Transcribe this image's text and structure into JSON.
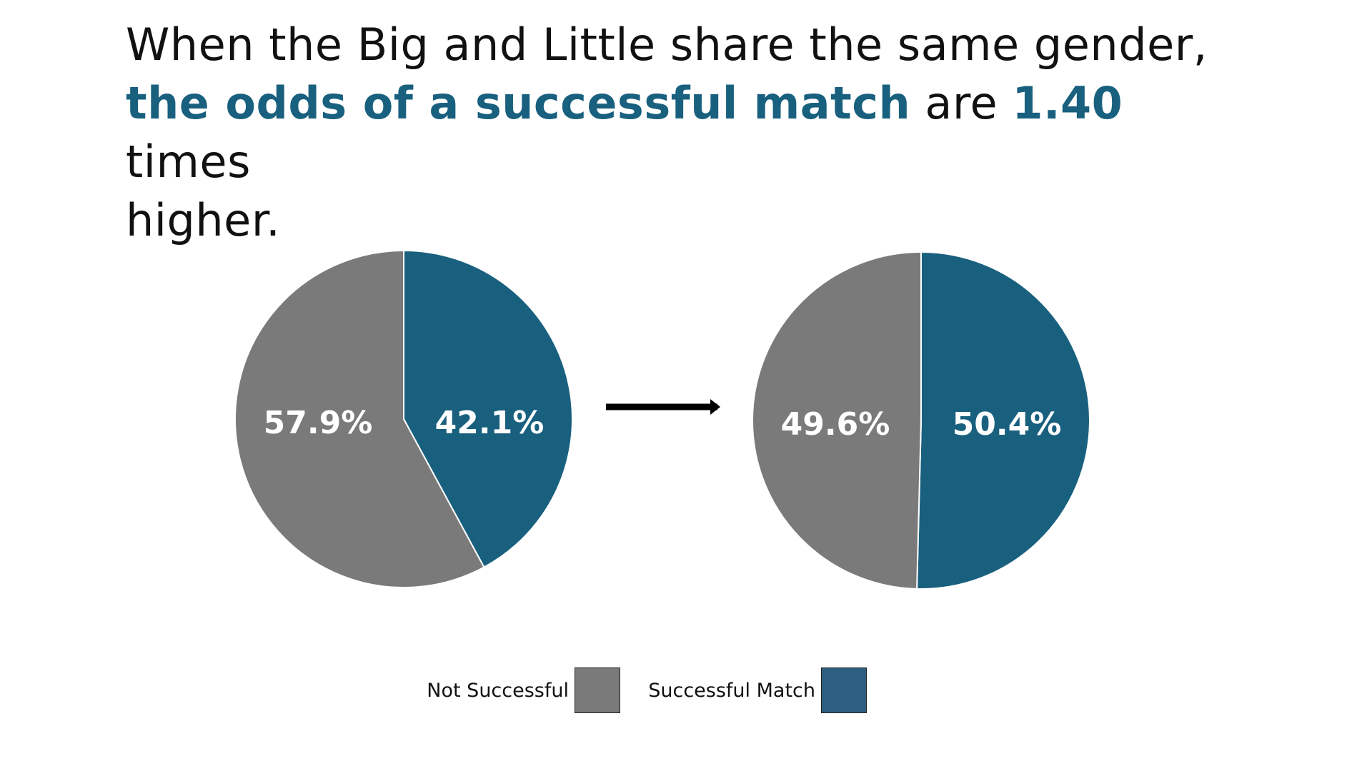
{
  "title": {
    "line1": "When the Big and Little share the same gender,",
    "emph1": "the odds of a successful match",
    "mid": " are ",
    "emph2": "1.40",
    "line2_end": " times",
    "line3": "higher."
  },
  "colors": {
    "not_successful": "#7a7a7a",
    "successful": "#19607f",
    "legend_successful": "#2e5f80",
    "accent_text": "#19607f",
    "arrow": "#000000"
  },
  "chart_data": [
    {
      "type": "pie",
      "categories": [
        "Not Successful",
        "Successful Match"
      ],
      "values": [
        57.9,
        42.1
      ],
      "labels": [
        "57.9%",
        "42.1%"
      ]
    },
    {
      "type": "pie",
      "categories": [
        "Not Successful",
        "Successful Match"
      ],
      "values": [
        49.6,
        50.4
      ],
      "labels": [
        "49.6%",
        "50.4%"
      ]
    }
  ],
  "legend": {
    "position": "bottom-center",
    "items": [
      {
        "label": "Not Successful",
        "color": "#7a7a7a"
      },
      {
        "label": "Successful Match",
        "color": "#2e5f80"
      }
    ]
  }
}
